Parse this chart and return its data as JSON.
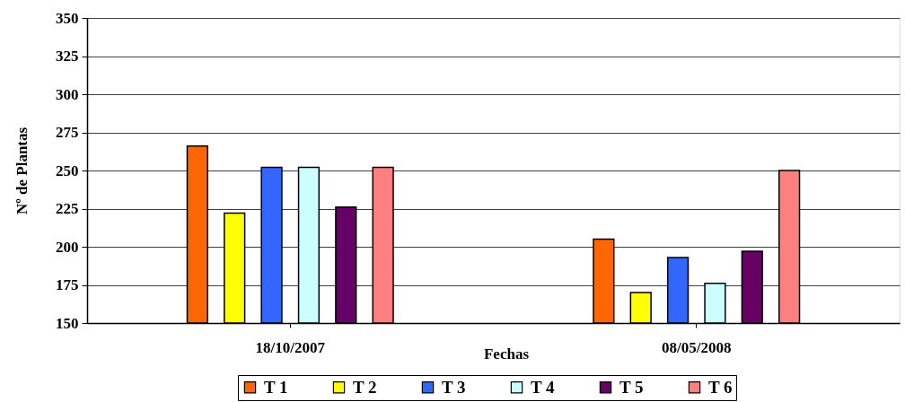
{
  "chart_data": {
    "type": "bar",
    "xlabel": "Fechas",
    "ylabel": "Nº de Plantas",
    "categories": [
      "18/10/2007",
      "08/05/2008"
    ],
    "series": [
      {
        "name": "T 1",
        "color": "#ff6600",
        "values": [
          266,
          205
        ]
      },
      {
        "name": "T 2",
        "color": "#ffff00",
        "values": [
          222,
          170
        ]
      },
      {
        "name": "T 3",
        "color": "#3366ff",
        "values": [
          252,
          193
        ]
      },
      {
        "name": "T 4",
        "color": "#ccffff",
        "values": [
          252,
          176
        ]
      },
      {
        "name": "T 5",
        "color": "#660066",
        "values": [
          226,
          197
        ]
      },
      {
        "name": "T 6",
        "color": "#ff8080",
        "values": [
          252,
          250
        ]
      }
    ],
    "ylim": [
      150,
      350
    ],
    "yticks": [
      150,
      175,
      200,
      225,
      250,
      275,
      300,
      325,
      350
    ],
    "grid": "y",
    "legend": "bottom"
  }
}
